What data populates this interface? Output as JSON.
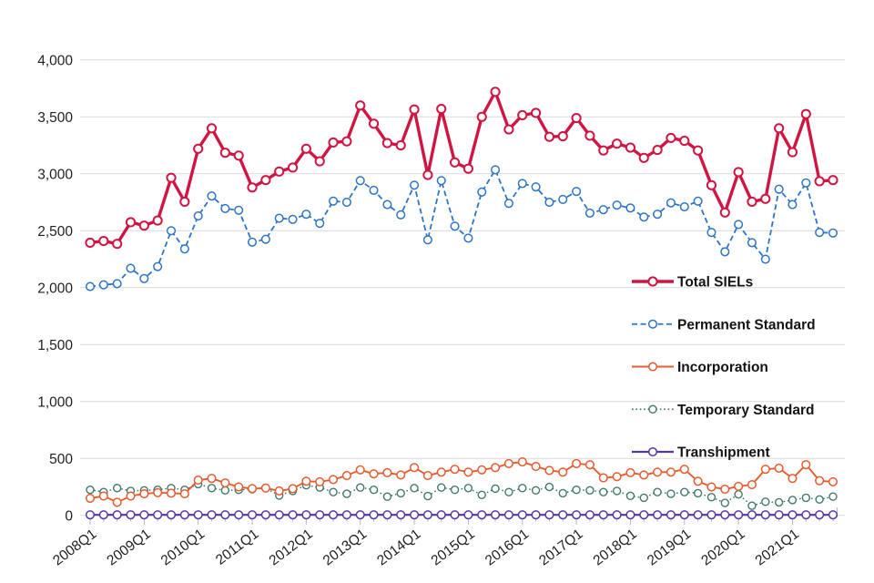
{
  "chart_data": {
    "type": "line",
    "title": "",
    "xlabel": "",
    "ylabel": "",
    "ylim": [
      0,
      4000
    ],
    "y_tick_step": 500,
    "y_tick_labels": [
      "0",
      "500",
      "1,000",
      "1,500",
      "2,000",
      "2,500",
      "3,000",
      "3,500",
      "4,000"
    ],
    "grid": "horizontal",
    "legend_position": "center-right-overlay",
    "x_tick_labels_visible": [
      "2008Q1",
      "2009Q1",
      "2010Q1",
      "2011Q1",
      "2012Q1",
      "2013Q1",
      "2014Q1",
      "2015Q1",
      "2016Q1",
      "2017Q1",
      "2018Q1",
      "2019Q1",
      "2020Q1",
      "2021Q1"
    ],
    "categories": [
      "2008Q1",
      "2008Q2",
      "2008Q3",
      "2008Q4",
      "2009Q1",
      "2009Q2",
      "2009Q3",
      "2009Q4",
      "2010Q1",
      "2010Q2",
      "2010Q3",
      "2010Q4",
      "2011Q1",
      "2011Q2",
      "2011Q3",
      "2011Q4",
      "2012Q1",
      "2012Q2",
      "2012Q3",
      "2012Q4",
      "2013Q1",
      "2013Q2",
      "2013Q3",
      "2013Q4",
      "2014Q1",
      "2014Q2",
      "2014Q3",
      "2014Q4",
      "2015Q1",
      "2015Q2",
      "2015Q3",
      "2015Q4",
      "2016Q1",
      "2016Q2",
      "2016Q3",
      "2016Q4",
      "2017Q1",
      "2017Q2",
      "2017Q3",
      "2017Q4",
      "2018Q1",
      "2018Q2",
      "2018Q3",
      "2018Q4",
      "2019Q1",
      "2019Q2",
      "2019Q3",
      "2019Q4",
      "2020Q1",
      "2020Q2",
      "2020Q3",
      "2020Q4",
      "2021Q1",
      "2021Q2",
      "2021Q3",
      "2021Q4"
    ],
    "series": [
      {
        "name": "Total SIELs",
        "color": "#d01543",
        "line_style": "solid",
        "line_width": 3.4,
        "marker_radius": 4.6,
        "marker_stroke": 2.0,
        "values": [
          2395,
          2410,
          2385,
          2575,
          2545,
          2590,
          2965,
          2755,
          3220,
          3400,
          3185,
          3160,
          2880,
          2945,
          3020,
          3055,
          3220,
          3110,
          3275,
          3285,
          3600,
          3440,
          3270,
          3250,
          3565,
          2990,
          3570,
          3100,
          3045,
          3500,
          3720,
          3390,
          3515,
          3535,
          3325,
          3330,
          3490,
          3335,
          3205,
          3265,
          3230,
          3140,
          3210,
          3315,
          3290,
          3205,
          2900,
          2660,
          3015,
          2755,
          2780,
          3400,
          3190,
          3525,
          2935,
          2945
        ]
      },
      {
        "name": "Permanent Standard",
        "color": "#2e75c6",
        "line_style": "dashed",
        "line_width": 1.8,
        "marker_radius": 4.3,
        "marker_stroke": 1.5,
        "values": [
          2010,
          2025,
          2035,
          2170,
          2080,
          2185,
          2500,
          2340,
          2630,
          2805,
          2695,
          2680,
          2400,
          2425,
          2610,
          2600,
          2645,
          2565,
          2760,
          2750,
          2940,
          2855,
          2730,
          2640,
          2900,
          2420,
          2940,
          2540,
          2435,
          2840,
          3035,
          2740,
          2915,
          2885,
          2750,
          2775,
          2845,
          2655,
          2685,
          2725,
          2700,
          2620,
          2645,
          2745,
          2710,
          2760,
          2485,
          2315,
          2555,
          2395,
          2250,
          2865,
          2730,
          2920,
          2485,
          2480
        ]
      },
      {
        "name": "Incorporation",
        "color": "#e65c30",
        "line_style": "solid",
        "line_width": 1.9,
        "marker_radius": 4.3,
        "marker_stroke": 1.5,
        "values": [
          150,
          170,
          115,
          170,
          190,
          200,
          195,
          190,
          310,
          325,
          285,
          250,
          235,
          240,
          215,
          235,
          300,
          295,
          315,
          350,
          400,
          365,
          375,
          355,
          420,
          350,
          380,
          405,
          380,
          400,
          420,
          455,
          470,
          430,
          395,
          380,
          455,
          445,
          330,
          340,
          375,
          355,
          380,
          380,
          405,
          300,
          250,
          230,
          255,
          270,
          405,
          415,
          325,
          445,
          305,
          295
        ]
      },
      {
        "name": "Temporary Standard",
        "color": "#42796d",
        "line_style": "dotted",
        "line_width": 1.5,
        "marker_radius": 4.0,
        "marker_stroke": 1.4,
        "values": [
          225,
          205,
          240,
          215,
          220,
          225,
          240,
          225,
          275,
          240,
          220,
          225,
          230,
          240,
          175,
          215,
          265,
          245,
          205,
          190,
          245,
          225,
          165,
          195,
          240,
          170,
          245,
          225,
          240,
          180,
          235,
          205,
          240,
          220,
          250,
          195,
          225,
          220,
          205,
          215,
          172,
          155,
          205,
          190,
          205,
          195,
          160,
          110,
          185,
          85,
          120,
          115,
          135,
          155,
          140,
          165
        ]
      },
      {
        "name": "Transhipment",
        "color": "#5836a8",
        "line_style": "solid",
        "line_width": 2.2,
        "marker_radius": 4.3,
        "marker_stroke": 1.5,
        "values": [
          5,
          5,
          5,
          5,
          5,
          5,
          5,
          5,
          5,
          5,
          5,
          5,
          5,
          5,
          5,
          5,
          5,
          5,
          5,
          5,
          5,
          5,
          5,
          5,
          5,
          5,
          5,
          5,
          5,
          5,
          5,
          5,
          5,
          5,
          5,
          5,
          5,
          5,
          5,
          5,
          5,
          5,
          5,
          5,
          5,
          5,
          5,
          5,
          5,
          5,
          5,
          5,
          5,
          5,
          5,
          5
        ]
      }
    ],
    "colors": {
      "gridline": "#d9d9d9",
      "tick": "#b7b7b7",
      "axis_text": "#1f1f1f",
      "background": "#ffffff"
    }
  }
}
